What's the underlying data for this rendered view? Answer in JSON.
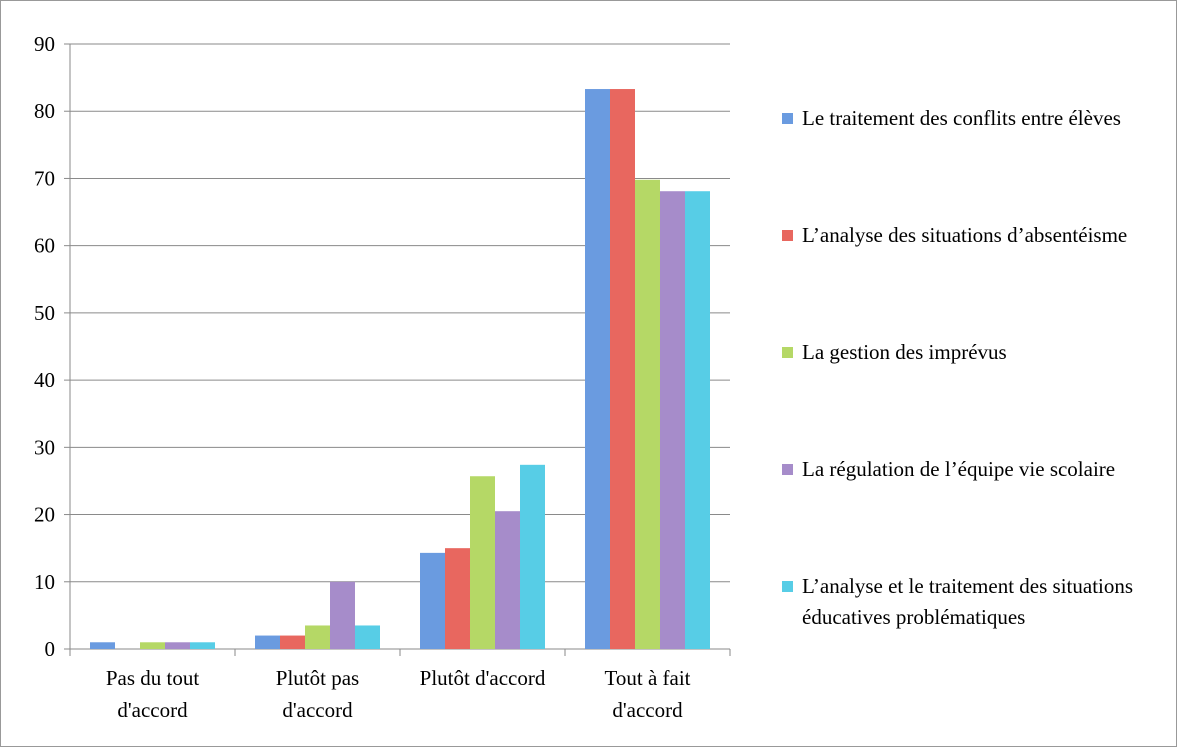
{
  "chart_data": {
    "type": "bar",
    "categories": [
      "Pas du tout d'accord",
      "Plutôt pas d'accord",
      "Plutôt d'accord",
      "Tout à fait d'accord"
    ],
    "series": [
      {
        "name": "Le traitement des conflits entre élèves",
        "color": "#6a9be0",
        "values": [
          1,
          2,
          14.3,
          83.3
        ]
      },
      {
        "name": "L’analyse des situations d’absentéisme",
        "color": "#e8675f",
        "values": [
          0,
          2,
          15,
          83.3
        ]
      },
      {
        "name": "La gestion des imprévus",
        "color": "#b5d866",
        "values": [
          1,
          3.5,
          25.7,
          69.8
        ]
      },
      {
        "name": "La régulation de l’équipe vie scolaire",
        "color": "#a68cca",
        "values": [
          1,
          10,
          20.5,
          68.1
        ]
      },
      {
        "name": "L’analyse et le traitement des situations éducatives problématiques",
        "color": "#57cde6",
        "values": [
          1,
          3.5,
          27.4,
          68.1
        ]
      }
    ],
    "ylim": [
      0,
      90
    ],
    "yticks": [
      0,
      10,
      20,
      30,
      40,
      50,
      60,
      70,
      80,
      90
    ],
    "grid": true,
    "legend": "right"
  }
}
